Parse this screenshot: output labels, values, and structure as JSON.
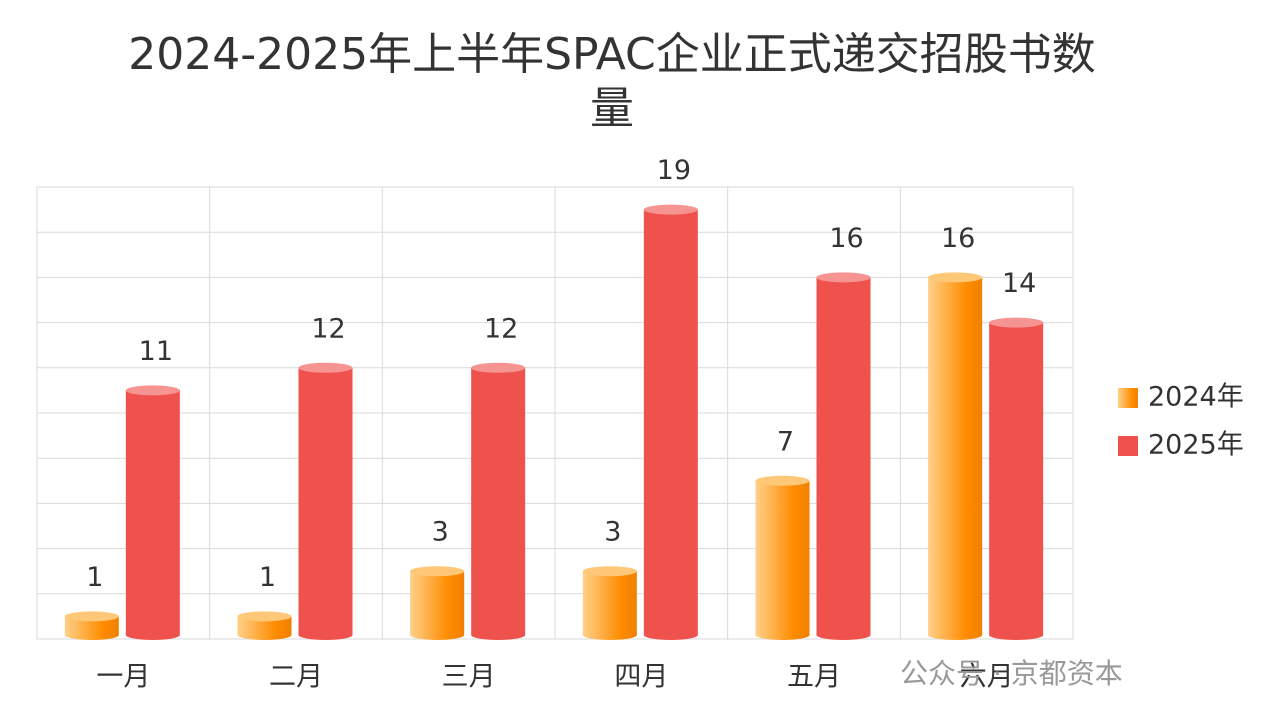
{
  "chart_data": {
    "type": "bar",
    "title": "2024-2025年上半年SPAC企业正式递交招股书数量",
    "categories": [
      "一月",
      "二月",
      "三月",
      "四月",
      "五月",
      "六月"
    ],
    "series": [
      {
        "name": "2024年",
        "color": "#ff8c00",
        "values": [
          1,
          1,
          3,
          3,
          7,
          16
        ]
      },
      {
        "name": "2025年",
        "color": "#ef524d",
        "values": [
          11,
          12,
          12,
          19,
          16,
          14
        ]
      }
    ],
    "ylim": [
      0,
      20
    ],
    "yticks": [
      0,
      2,
      4,
      6,
      8,
      10,
      12,
      14,
      16,
      18,
      20
    ],
    "grid": true,
    "legend": "right",
    "watermark": "公众号 · 京都资本"
  }
}
